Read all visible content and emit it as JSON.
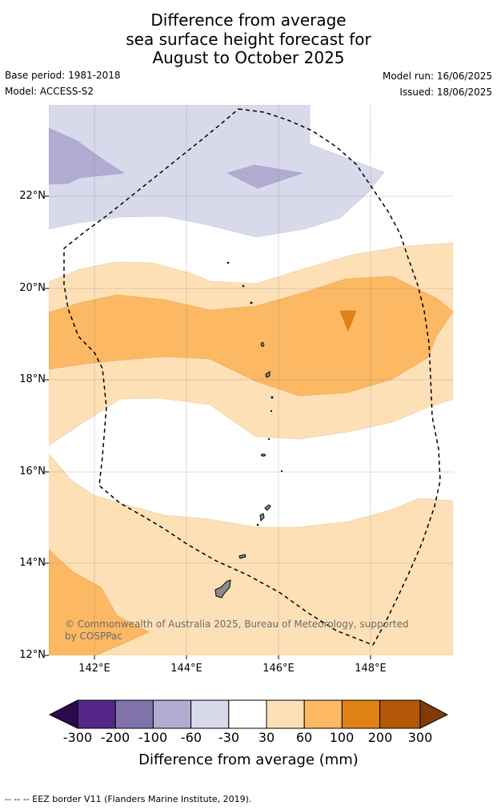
{
  "title": {
    "line1": "Difference from average",
    "line2": "sea surface height forecast for",
    "line3": "August to October 2025"
  },
  "meta": {
    "base_period": "Base period: 1981-2018",
    "model": "Model: ACCESS-S2",
    "model_run": "Model run: 16/06/2025",
    "issued": "Issued: 18/06/2025"
  },
  "map": {
    "lat_labels": [
      "22°N",
      "20°N",
      "18°N",
      "16°N",
      "14°N",
      "12°N"
    ],
    "lon_labels": [
      "142°E",
      "144°E",
      "146°E",
      "148°E"
    ],
    "copyright": "© Commonwealth of Australia 2025, Bureau of Meteorology, supported by COSPPac",
    "land_color": "#8c8c8c",
    "eez_line_style": "dashed"
  },
  "colorbar": {
    "title": "Difference from average (mm)",
    "ticks": [
      "-300",
      "-200",
      "-100",
      "-60",
      "-30",
      "30",
      "60",
      "100",
      "200",
      "300"
    ],
    "colors": {
      "below_-300": "#2d0a4e",
      "-300_-200": "#542788",
      "-200_-100": "#8073ac",
      "-100_-60": "#b2abd2",
      "-60_-30": "#d8daeb",
      "-30_30": "#ffffff",
      "30_60": "#fee0b6",
      "60_100": "#fdb863",
      "100_200": "#e08214",
      "200_300": "#b35806",
      "above_300": "#7f3b08"
    }
  },
  "footer": "--  --  -- EEZ border V11 (Flanders Marine Institute, 2019)."
}
